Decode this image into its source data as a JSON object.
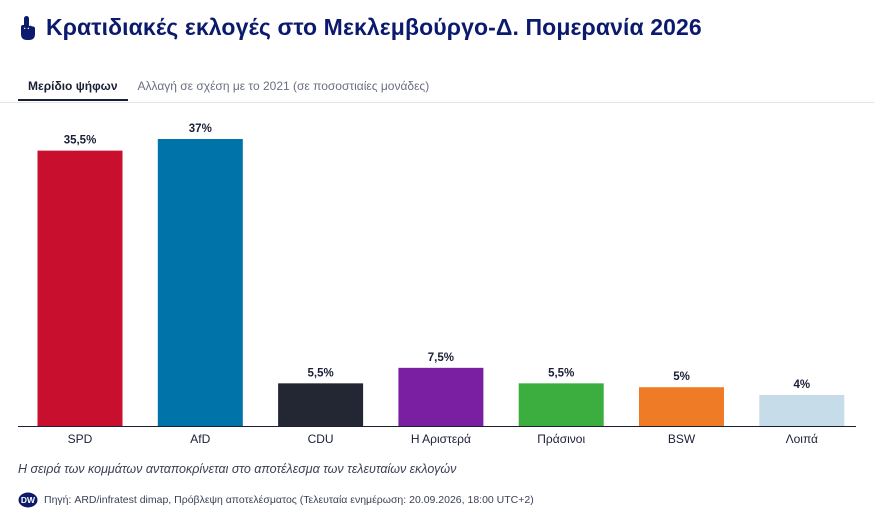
{
  "header": {
    "title": "Κρατιδιακές εκλογές στο Μεκλεμβούργο-Δ. Πομερανία 2026",
    "icon": "pointing-hand-icon"
  },
  "tabs": [
    {
      "label": "Μερίδιο ψήφων",
      "active": true
    },
    {
      "label": "Αλλαγή σε σχέση με το 2021 (σε ποσοστιαίες μονάδες)",
      "active": false
    }
  ],
  "chart_data": {
    "type": "bar",
    "categories": [
      "SPD",
      "AfD",
      "CDU",
      "Η Αριστερά",
      "Πράσινοι",
      "BSW",
      "Λοιπά"
    ],
    "values": [
      35.5,
      37,
      5.5,
      7.5,
      5.5,
      5,
      4
    ],
    "data_labels": [
      "35,5%",
      "37%",
      "5,5%",
      "7,5%",
      "5,5%",
      "5%",
      "4%"
    ],
    "colors": [
      "#c8102e",
      "#0073a8",
      "#232733",
      "#7b1fa2",
      "#3cae3f",
      "#f07b26",
      "#c7dce9"
    ],
    "ylim": [
      0,
      37
    ],
    "grid": false,
    "legend": "none"
  },
  "footer": {
    "note": "Η σειρά των κομμάτων ανταποκρίνεται στο αποτέλεσμα των τελευταίων εκλογών",
    "logo": "dw-logo-icon",
    "source": "Πηγή: ARD/infratest dimap, Πρόβλεψη αποτελέσματος (Τελευταία ενημέρωση: 20.09.2026, 18:00 UTC+2)"
  }
}
